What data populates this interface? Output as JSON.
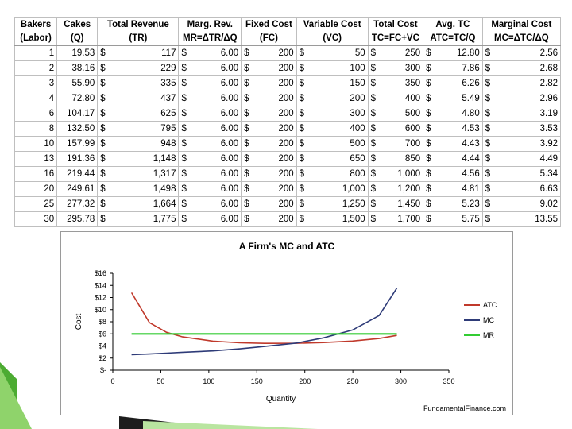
{
  "table": {
    "headers_row1": [
      "Bakers",
      "Cakes",
      "Total Revenue",
      "Marg. Rev.",
      "Fixed Cost",
      "Variable Cost",
      "Total Cost",
      "Avg. TC",
      "Marginal Cost"
    ],
    "headers_row2": [
      "(Labor)",
      "(Q)",
      "(TR)",
      "MR=ΔTR/ΔQ",
      "(FC)",
      "(VC)",
      "TC=FC+VC",
      "ATC=TC/Q",
      "MC=ΔTC/ΔQ"
    ],
    "currency_symbol": "$",
    "rows": [
      [
        "1",
        "19.53",
        "117",
        "6.00",
        "200",
        "50",
        "250",
        "12.80",
        "2.56"
      ],
      [
        "2",
        "38.16",
        "229",
        "6.00",
        "200",
        "100",
        "300",
        "7.86",
        "2.68"
      ],
      [
        "3",
        "55.90",
        "335",
        "6.00",
        "200",
        "150",
        "350",
        "6.26",
        "2.82"
      ],
      [
        "4",
        "72.80",
        "437",
        "6.00",
        "200",
        "200",
        "400",
        "5.49",
        "2.96"
      ],
      [
        "6",
        "104.17",
        "625",
        "6.00",
        "200",
        "300",
        "500",
        "4.80",
        "3.19"
      ],
      [
        "8",
        "132.50",
        "795",
        "6.00",
        "200",
        "400",
        "600",
        "4.53",
        "3.53"
      ],
      [
        "10",
        "157.99",
        "948",
        "6.00",
        "200",
        "500",
        "700",
        "4.43",
        "3.92"
      ],
      [
        "13",
        "191.36",
        "1,148",
        "6.00",
        "200",
        "650",
        "850",
        "4.44",
        "4.49"
      ],
      [
        "16",
        "219.44",
        "1,317",
        "6.00",
        "200",
        "800",
        "1,000",
        "4.56",
        "5.34"
      ],
      [
        "20",
        "249.61",
        "1,498",
        "6.00",
        "200",
        "1,000",
        "1,200",
        "4.81",
        "6.63"
      ],
      [
        "25",
        "277.32",
        "1,664",
        "6.00",
        "200",
        "1,250",
        "1,450",
        "5.23",
        "9.02"
      ],
      [
        "30",
        "295.78",
        "1,775",
        "6.00",
        "200",
        "1,500",
        "1,700",
        "5.75",
        "13.55"
      ]
    ]
  },
  "chart_data": {
    "type": "line",
    "title": "A Firm's MC and ATC",
    "xlabel": "Quantity",
    "ylabel": "Cost",
    "xlim": [
      0,
      350
    ],
    "ylim": [
      0,
      16
    ],
    "x_ticks": [
      0,
      50,
      100,
      150,
      200,
      250,
      300,
      350
    ],
    "x_tick_labels": [
      "0",
      "50",
      "100",
      "150",
      "200",
      "250",
      "300",
      "350"
    ],
    "y_ticks": [
      0,
      2,
      4,
      6,
      8,
      10,
      12,
      14,
      16
    ],
    "y_tick_labels": [
      "$-",
      "$2",
      "$4",
      "$6",
      "$8",
      "$10",
      "$12",
      "$14",
      "$16"
    ],
    "grid": false,
    "legend_position": "right",
    "x": [
      19.53,
      38.16,
      55.9,
      72.8,
      104.17,
      132.5,
      157.99,
      191.36,
      219.44,
      249.61,
      277.32,
      295.78
    ],
    "series": [
      {
        "name": "ATC",
        "color": "#c0392b",
        "values": [
          12.8,
          7.86,
          6.26,
          5.49,
          4.8,
          4.53,
          4.43,
          4.44,
          4.56,
          4.81,
          5.23,
          5.75
        ]
      },
      {
        "name": "MC",
        "color": "#2e3b78",
        "values": [
          2.56,
          2.68,
          2.82,
          2.96,
          3.19,
          3.53,
          3.92,
          4.49,
          5.34,
          6.63,
          9.02,
          13.55
        ]
      },
      {
        "name": "MR",
        "color": "#33cc33",
        "values": [
          6.0,
          6.0,
          6.0,
          6.0,
          6.0,
          6.0,
          6.0,
          6.0,
          6.0,
          6.0,
          6.0,
          6.0
        ]
      }
    ],
    "source_note": "FundamentalFinance.com"
  },
  "colors": {
    "axis": "#000000",
    "plot_border": "#808080",
    "deco_green": "#4cab32",
    "deco_dark": "#1d1d1d"
  }
}
